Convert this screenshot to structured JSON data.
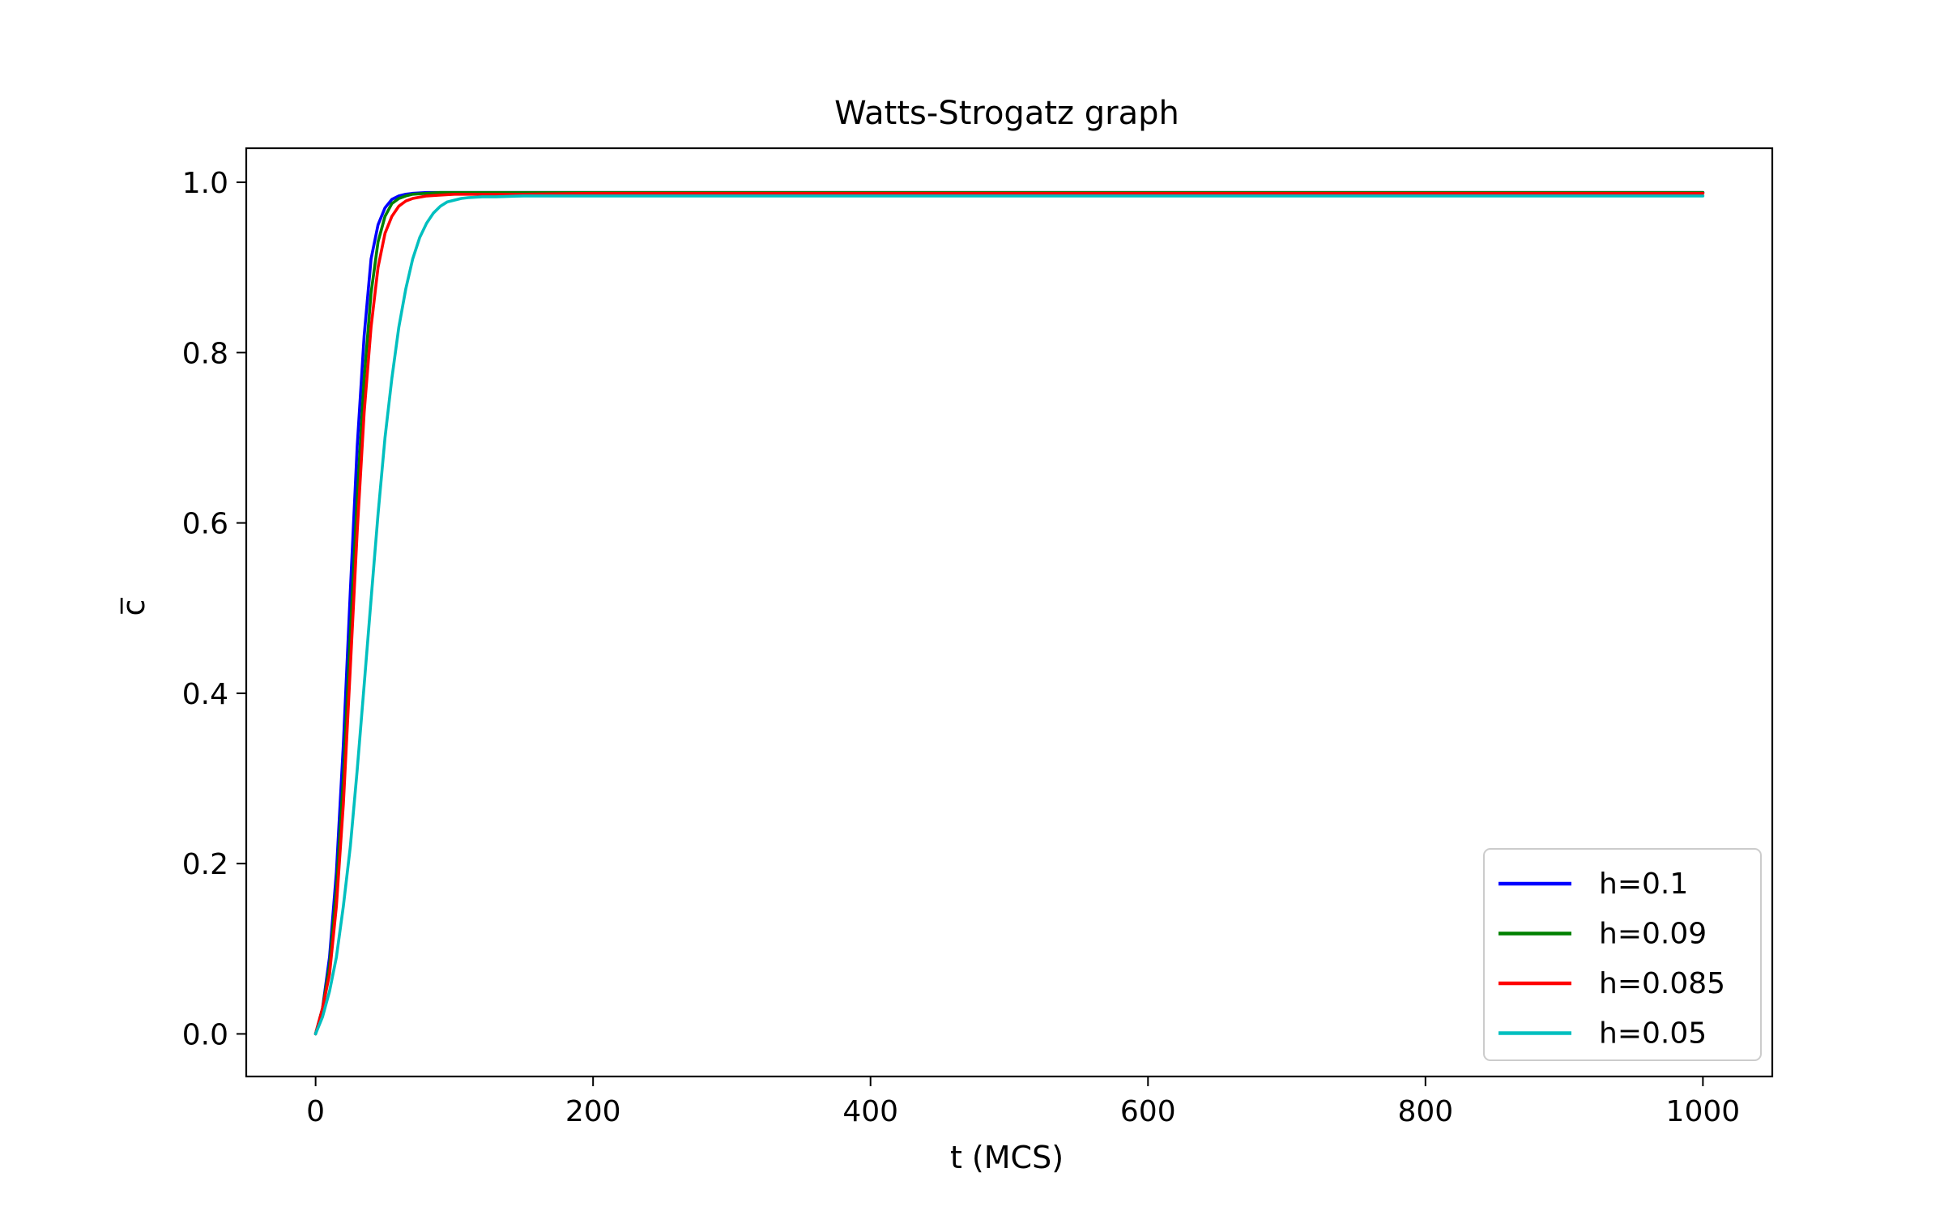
{
  "chart_data": {
    "type": "line",
    "title": "Watts-Strogatz graph",
    "xlabel": "t (MCS)",
    "ylabel": "c̅",
    "xlim": [
      -50,
      1050
    ],
    "ylim": [
      -0.05,
      1.04
    ],
    "xticks": [
      0,
      200,
      400,
      600,
      800,
      1000
    ],
    "xtick_labels": [
      "0",
      "200",
      "400",
      "600",
      "800",
      "1000"
    ],
    "yticks": [
      0.0,
      0.2,
      0.4,
      0.6,
      0.8,
      1.0
    ],
    "ytick_labels": [
      "0.0",
      "0.2",
      "0.4",
      "0.6",
      "0.8",
      "1.0"
    ],
    "grid": false,
    "legend_position": "lower-right",
    "series": [
      {
        "name": "h=0.1",
        "color": "#0000ff",
        "x": [
          0,
          5,
          10,
          15,
          20,
          25,
          30,
          35,
          40,
          45,
          50,
          55,
          60,
          65,
          70,
          80,
          100,
          150,
          200,
          300,
          400,
          500,
          600,
          700,
          800,
          900,
          1000
        ],
        "y": [
          0.0,
          0.03,
          0.09,
          0.19,
          0.34,
          0.52,
          0.69,
          0.82,
          0.91,
          0.95,
          0.97,
          0.98,
          0.984,
          0.986,
          0.987,
          0.988,
          0.988,
          0.988,
          0.988,
          0.988,
          0.988,
          0.988,
          0.988,
          0.988,
          0.988,
          0.988,
          0.988
        ]
      },
      {
        "name": "h=0.09",
        "color": "#008000",
        "x": [
          0,
          5,
          10,
          15,
          20,
          25,
          30,
          35,
          40,
          45,
          50,
          55,
          60,
          65,
          70,
          80,
          90,
          100,
          150,
          200,
          300,
          400,
          500,
          600,
          700,
          800,
          900,
          1000
        ],
        "y": [
          0.0,
          0.03,
          0.08,
          0.17,
          0.3,
          0.47,
          0.63,
          0.77,
          0.87,
          0.93,
          0.96,
          0.975,
          0.981,
          0.984,
          0.986,
          0.987,
          0.988,
          0.988,
          0.988,
          0.988,
          0.988,
          0.988,
          0.988,
          0.988,
          0.988,
          0.988,
          0.988,
          0.988
        ]
      },
      {
        "name": "h=0.085",
        "color": "#ff0000",
        "x": [
          0,
          5,
          10,
          15,
          20,
          25,
          30,
          35,
          40,
          45,
          50,
          55,
          60,
          65,
          70,
          80,
          90,
          100,
          120,
          150,
          200,
          300,
          400,
          500,
          600,
          700,
          800,
          900,
          1000
        ],
        "y": [
          0.0,
          0.03,
          0.07,
          0.15,
          0.27,
          0.43,
          0.59,
          0.73,
          0.83,
          0.9,
          0.94,
          0.96,
          0.972,
          0.978,
          0.981,
          0.984,
          0.985,
          0.986,
          0.986,
          0.986,
          0.987,
          0.987,
          0.987,
          0.987,
          0.987,
          0.987,
          0.987,
          0.987,
          0.987
        ]
      },
      {
        "name": "h=0.05",
        "color": "#00bfbf",
        "x": [
          0,
          5,
          10,
          15,
          20,
          25,
          30,
          35,
          40,
          45,
          50,
          55,
          60,
          65,
          70,
          75,
          80,
          85,
          90,
          95,
          100,
          105,
          110,
          120,
          130,
          150,
          200,
          300,
          400,
          500,
          600,
          700,
          800,
          900,
          1000
        ],
        "y": [
          0.0,
          0.02,
          0.05,
          0.09,
          0.15,
          0.22,
          0.31,
          0.41,
          0.51,
          0.61,
          0.7,
          0.77,
          0.83,
          0.875,
          0.91,
          0.935,
          0.952,
          0.964,
          0.972,
          0.977,
          0.979,
          0.981,
          0.982,
          0.983,
          0.983,
          0.984,
          0.984,
          0.984,
          0.984,
          0.984,
          0.984,
          0.984,
          0.984,
          0.984,
          0.984
        ]
      }
    ]
  }
}
